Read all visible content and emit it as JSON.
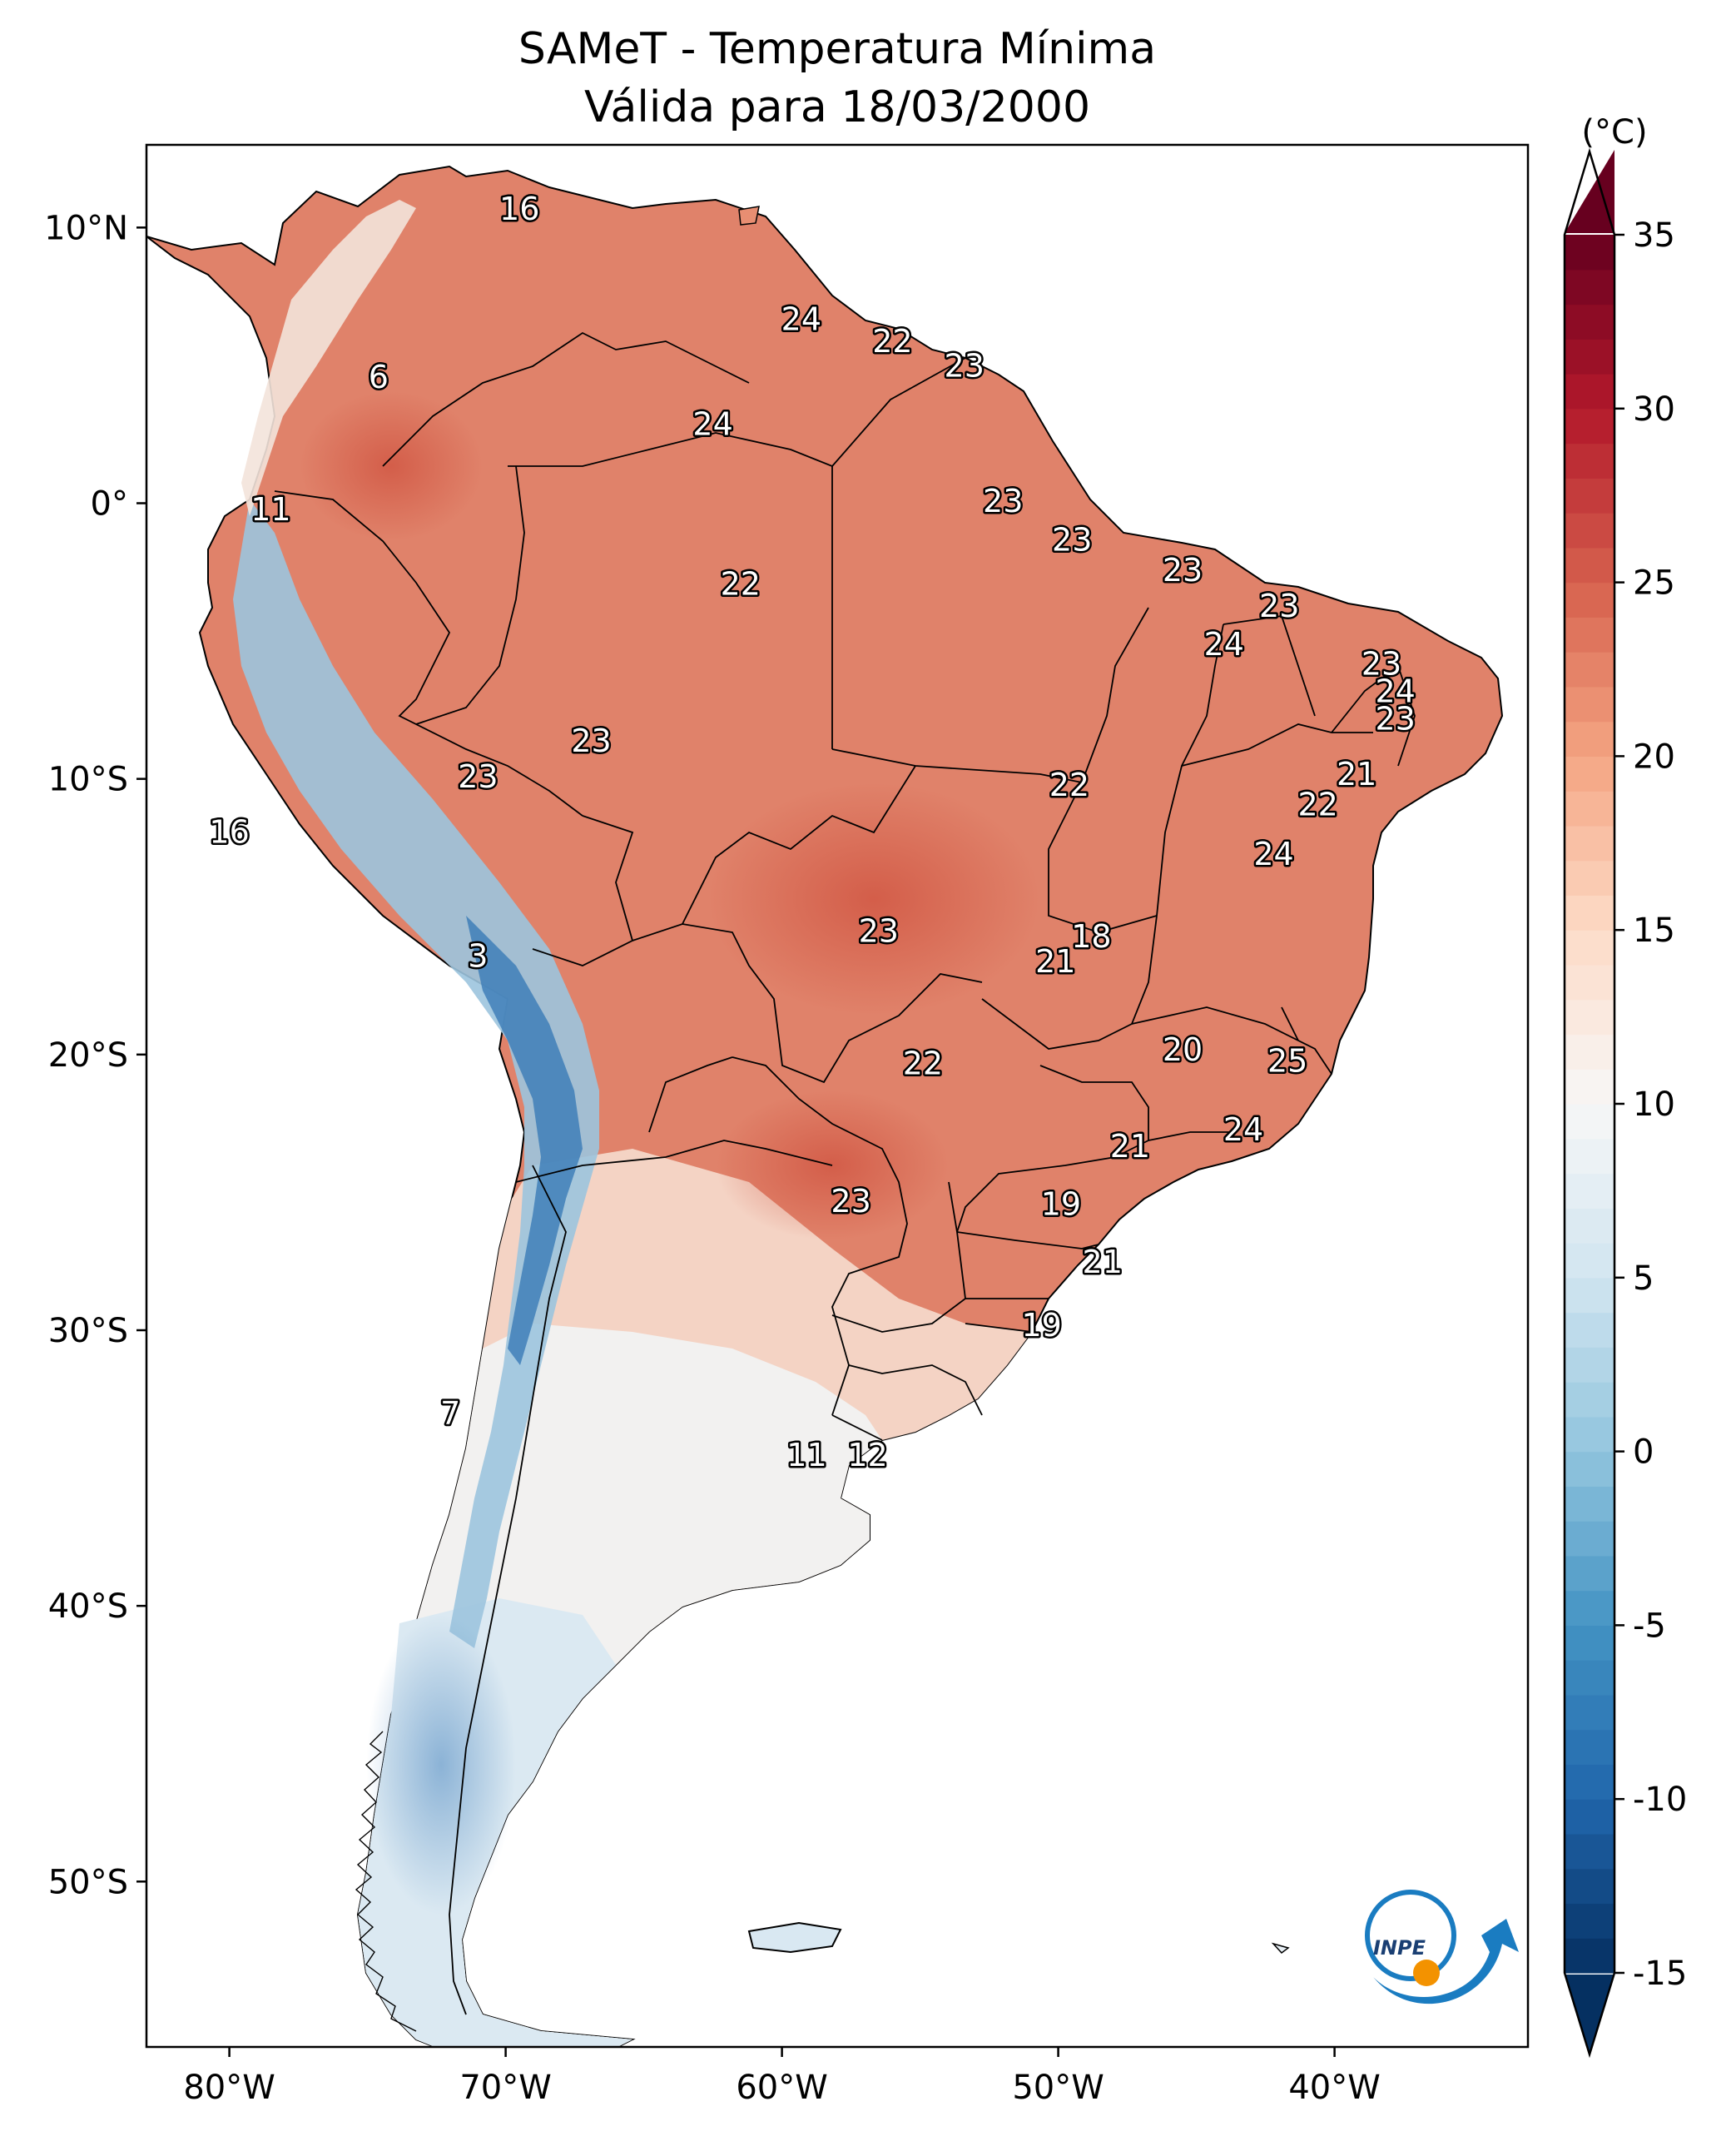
{
  "title": {
    "line1": "SAMeT - Temperatura Mínima",
    "line2": "Válida para 18/03/2000"
  },
  "map": {
    "lon_range": [
      -83,
      -33
    ],
    "lat_range": [
      -56,
      13
    ],
    "lon_ticks": [
      {
        "value": -80,
        "label": "80°W"
      },
      {
        "value": -70,
        "label": "70°W"
      },
      {
        "value": -60,
        "label": "60°W"
      },
      {
        "value": -50,
        "label": "50°W"
      },
      {
        "value": -40,
        "label": "40°W"
      }
    ],
    "lat_ticks": [
      {
        "value": 10,
        "label": "10°N"
      },
      {
        "value": 0,
        "label": "0°"
      },
      {
        "value": -10,
        "label": "10°S"
      },
      {
        "value": -20,
        "label": "20°S"
      },
      {
        "value": -30,
        "label": "30°S"
      },
      {
        "value": -40,
        "label": "40°S"
      },
      {
        "value": -50,
        "label": "50°S"
      }
    ],
    "labels": [
      {
        "lon": -69.5,
        "lat": 10.6,
        "text": "16"
      },
      {
        "lon": -74.6,
        "lat": 4.5,
        "text": "6"
      },
      {
        "lon": -78.5,
        "lat": -0.3,
        "text": "11"
      },
      {
        "lon": -61.5,
        "lat": -3.0,
        "text": "22"
      },
      {
        "lon": -62.5,
        "lat": 2.8,
        "text": "24"
      },
      {
        "lon": -59.3,
        "lat": 6.6,
        "text": "24"
      },
      {
        "lon": -56.0,
        "lat": 5.8,
        "text": "22"
      },
      {
        "lon": -53.4,
        "lat": 4.9,
        "text": "23"
      },
      {
        "lon": -52.0,
        "lat": 0.0,
        "text": "23"
      },
      {
        "lon": -49.5,
        "lat": -1.4,
        "text": "23"
      },
      {
        "lon": -45.5,
        "lat": -2.5,
        "text": "23"
      },
      {
        "lon": -42.0,
        "lat": -3.8,
        "text": "23"
      },
      {
        "lon": -44.0,
        "lat": -5.2,
        "text": "24"
      },
      {
        "lon": -38.3,
        "lat": -5.9,
        "text": "23"
      },
      {
        "lon": -37.8,
        "lat": -6.9,
        "text": "24"
      },
      {
        "lon": -37.8,
        "lat": -7.9,
        "text": "23"
      },
      {
        "lon": -39.2,
        "lat": -9.9,
        "text": "21"
      },
      {
        "lon": -40.6,
        "lat": -11.0,
        "text": "22"
      },
      {
        "lon": -42.2,
        "lat": -12.8,
        "text": "24"
      },
      {
        "lon": -49.6,
        "lat": -10.3,
        "text": "22"
      },
      {
        "lon": -66.9,
        "lat": -8.7,
        "text": "23"
      },
      {
        "lon": -71.0,
        "lat": -10.0,
        "text": "23"
      },
      {
        "lon": -80.0,
        "lat": -12.0,
        "text": "16"
      },
      {
        "lon": -71.0,
        "lat": -16.5,
        "text": "3"
      },
      {
        "lon": -56.5,
        "lat": -15.6,
        "text": "23"
      },
      {
        "lon": -48.8,
        "lat": -15.8,
        "text": "18"
      },
      {
        "lon": -50.1,
        "lat": -16.7,
        "text": "21"
      },
      {
        "lon": -54.9,
        "lat": -20.4,
        "text": "22"
      },
      {
        "lon": -45.5,
        "lat": -19.9,
        "text": "20"
      },
      {
        "lon": -41.7,
        "lat": -20.3,
        "text": "25"
      },
      {
        "lon": -43.3,
        "lat": -22.8,
        "text": "24"
      },
      {
        "lon": -47.4,
        "lat": -23.4,
        "text": "21"
      },
      {
        "lon": -49.9,
        "lat": -25.5,
        "text": "19"
      },
      {
        "lon": -57.5,
        "lat": -25.4,
        "text": "23"
      },
      {
        "lon": -48.4,
        "lat": -27.6,
        "text": "21"
      },
      {
        "lon": -50.6,
        "lat": -29.9,
        "text": "19"
      },
      {
        "lon": -72.0,
        "lat": -33.1,
        "text": "7"
      },
      {
        "lon": -59.1,
        "lat": -34.6,
        "text": "11"
      },
      {
        "lon": -56.9,
        "lat": -34.6,
        "text": "12"
      }
    ]
  },
  "colorbar": {
    "unit_label": "(°C)",
    "range": [
      -15,
      35
    ],
    "ticks": [
      "35",
      "30",
      "25",
      "20",
      "15",
      "10",
      "5",
      "0",
      "-5",
      "-10",
      "-15"
    ],
    "colors": [
      "#053061",
      "#2166ac",
      "#4393c3",
      "#92c5de",
      "#d1e5f0",
      "#f7f7f7",
      "#fddbc7",
      "#f4a582",
      "#d6604d",
      "#b2182b",
      "#67001f"
    ]
  },
  "logo": {
    "text": "INPE",
    "blue": "#1a7cc1",
    "orange": "#f39200"
  }
}
